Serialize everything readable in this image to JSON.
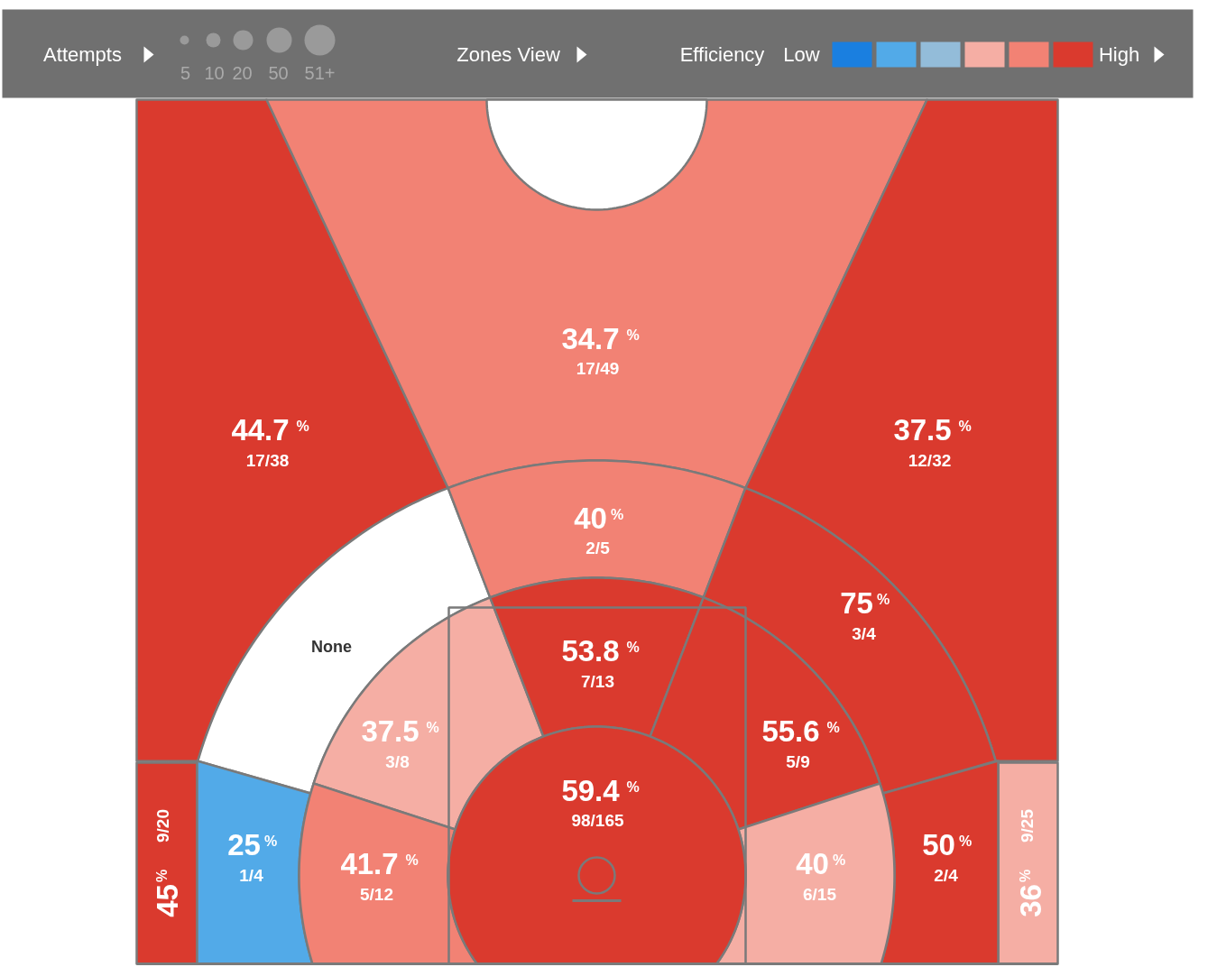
{
  "chart_data": {
    "type": "other",
    "values": [
      45,
      36,
      44.7,
      34.7,
      37.5,
      null,
      40,
      75,
      25,
      50,
      37.5,
      41.7,
      53.8,
      55.6,
      40,
      59.4
    ],
    "data_labels": true,
    "categories": [
      "9/20",
      "9/25",
      "17/38",
      "17/49",
      "12/32",
      "None",
      "2/5",
      "3/4",
      "1/4",
      "2/4",
      "3/8",
      "5/12",
      "7/13",
      "5/9",
      "6/15",
      "98/165"
    ],
    "colors": [
      "#da3a2e",
      "#f5aea4",
      "#da3a2e",
      "#f28274",
      "#da3a2e",
      "#ffffff",
      "#f28274",
      "#da3a2e",
      "#52aae8",
      "#da3a2e",
      "#f5aea4",
      "#f28274",
      "#da3a2e",
      "#da3a2e",
      "#f5aea4",
      "#da3a2e"
    ],
    "annotations": [
      "%",
      "Attempts",
      "5",
      "10",
      "20",
      "50",
      "51+",
      "Zones View",
      "Efficiency",
      "Low",
      "High"
    ]
  }
}
